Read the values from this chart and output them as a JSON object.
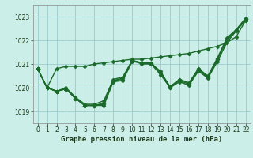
{
  "background_color": "#cceee8",
  "grid_color": "#99cccc",
  "line_color": "#1a6b2a",
  "title": "Graphe pression niveau de la mer (hPa)",
  "xlim": [
    -0.5,
    22.5
  ],
  "ylim": [
    1018.5,
    1023.5
  ],
  "yticks": [
    1019,
    1020,
    1021,
    1022,
    1023
  ],
  "xticks": [
    0,
    1,
    2,
    3,
    4,
    5,
    6,
    7,
    8,
    9,
    10,
    11,
    12,
    13,
    14,
    15,
    16,
    17,
    18,
    19,
    20,
    21,
    22
  ],
  "lines": [
    [
      1020.8,
      1020.0,
      1019.85,
      1019.95,
      1019.55,
      1019.25,
      1019.25,
      1019.25,
      1020.25,
      1020.3,
      1021.1,
      1021.05,
      1021.0,
      1020.55,
      1020.0,
      1020.25,
      1020.1,
      1020.7,
      1020.4,
      1021.1,
      1021.9,
      1022.4,
      1022.85
    ],
    [
      1020.8,
      1020.0,
      1019.85,
      1019.95,
      1019.55,
      1019.25,
      1019.25,
      1019.3,
      1020.3,
      1020.35,
      1021.15,
      1021.05,
      1021.05,
      1020.6,
      1020.05,
      1020.3,
      1020.15,
      1020.75,
      1020.45,
      1021.2,
      1022.0,
      1022.4,
      1022.9
    ],
    [
      1020.8,
      1020.0,
      1019.85,
      1019.95,
      1019.55,
      1019.25,
      1019.25,
      1019.35,
      1020.3,
      1020.4,
      1021.15,
      1021.05,
      1021.05,
      1020.65,
      1020.05,
      1020.35,
      1020.2,
      1020.8,
      1020.5,
      1021.25,
      1022.1,
      1022.45,
      1022.95
    ],
    [
      1020.8,
      1020.0,
      1019.85,
      1020.0,
      1019.6,
      1019.3,
      1019.3,
      1019.45,
      1020.35,
      1020.45,
      1021.15,
      1021.0,
      1021.0,
      1020.7,
      1020.0,
      1020.35,
      1020.2,
      1020.8,
      1020.45,
      1021.2,
      1022.05,
      1022.45,
      1022.9
    ],
    [
      1020.8,
      1020.0,
      1020.8,
      1020.9,
      1020.9,
      1020.9,
      1021.0,
      1021.05,
      1021.1,
      1021.15,
      1021.2,
      1021.2,
      1021.25,
      1021.3,
      1021.35,
      1021.4,
      1021.45,
      1021.55,
      1021.65,
      1021.75,
      1021.9,
      1022.15,
      1022.85
    ]
  ],
  "marker": "D",
  "markersize": 2.5,
  "linewidth": 1.0,
  "title_fontsize": 6.5,
  "tick_fontsize": 5.5
}
